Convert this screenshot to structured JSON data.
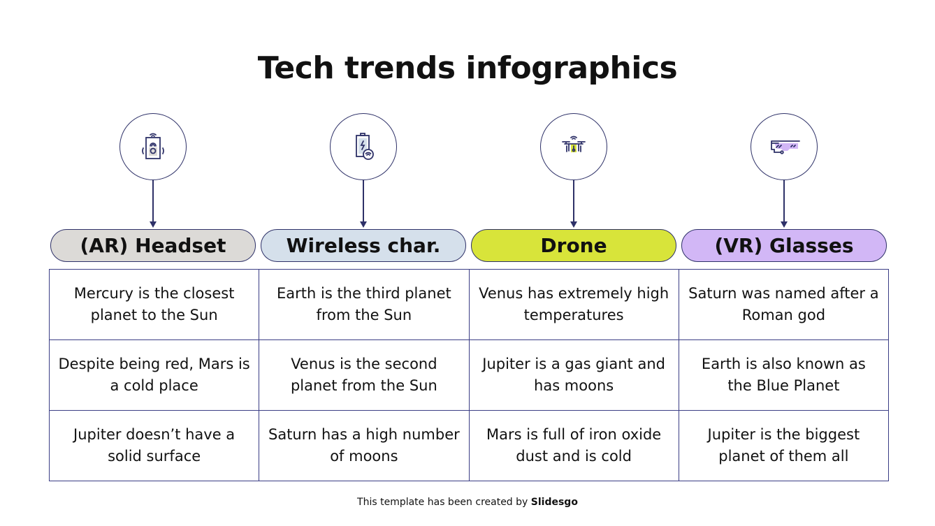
{
  "title": "Tech trends infographics",
  "columns": [
    {
      "label": "(AR) Headset",
      "icon": "speaker-icon",
      "color": "#dcdad7",
      "cells": [
        "Mercury is the closest planet to the Sun",
        "Despite being red, Mars is a cold place",
        "Jupiter doesn’t have a solid surface"
      ]
    },
    {
      "label": "Wireless char.",
      "icon": "wireless-battery-icon",
      "color": "#d5e0eb",
      "cells": [
        "Earth is the third planet from the Sun",
        "Venus is the second planet from the Sun",
        "Saturn has a high number of moons"
      ]
    },
    {
      "label": "Drone",
      "icon": "drone-icon",
      "color": "#d8e43a",
      "cells": [
        "Venus has extremely high temperatures",
        "Jupiter is a gas giant and has moons",
        "Mars is full of iron oxide dust and is cold"
      ]
    },
    {
      "label": "(VR) Glasses",
      "icon": "vr-glasses-icon",
      "color": "#d2b7f6",
      "cells": [
        "Saturn was named after a Roman god",
        "Earth is also known as the Blue Planet",
        "Jupiter is the biggest planet of them all"
      ]
    }
  ],
  "footer": {
    "text": "This template has been created by ",
    "brand": "Slidesgo"
  }
}
